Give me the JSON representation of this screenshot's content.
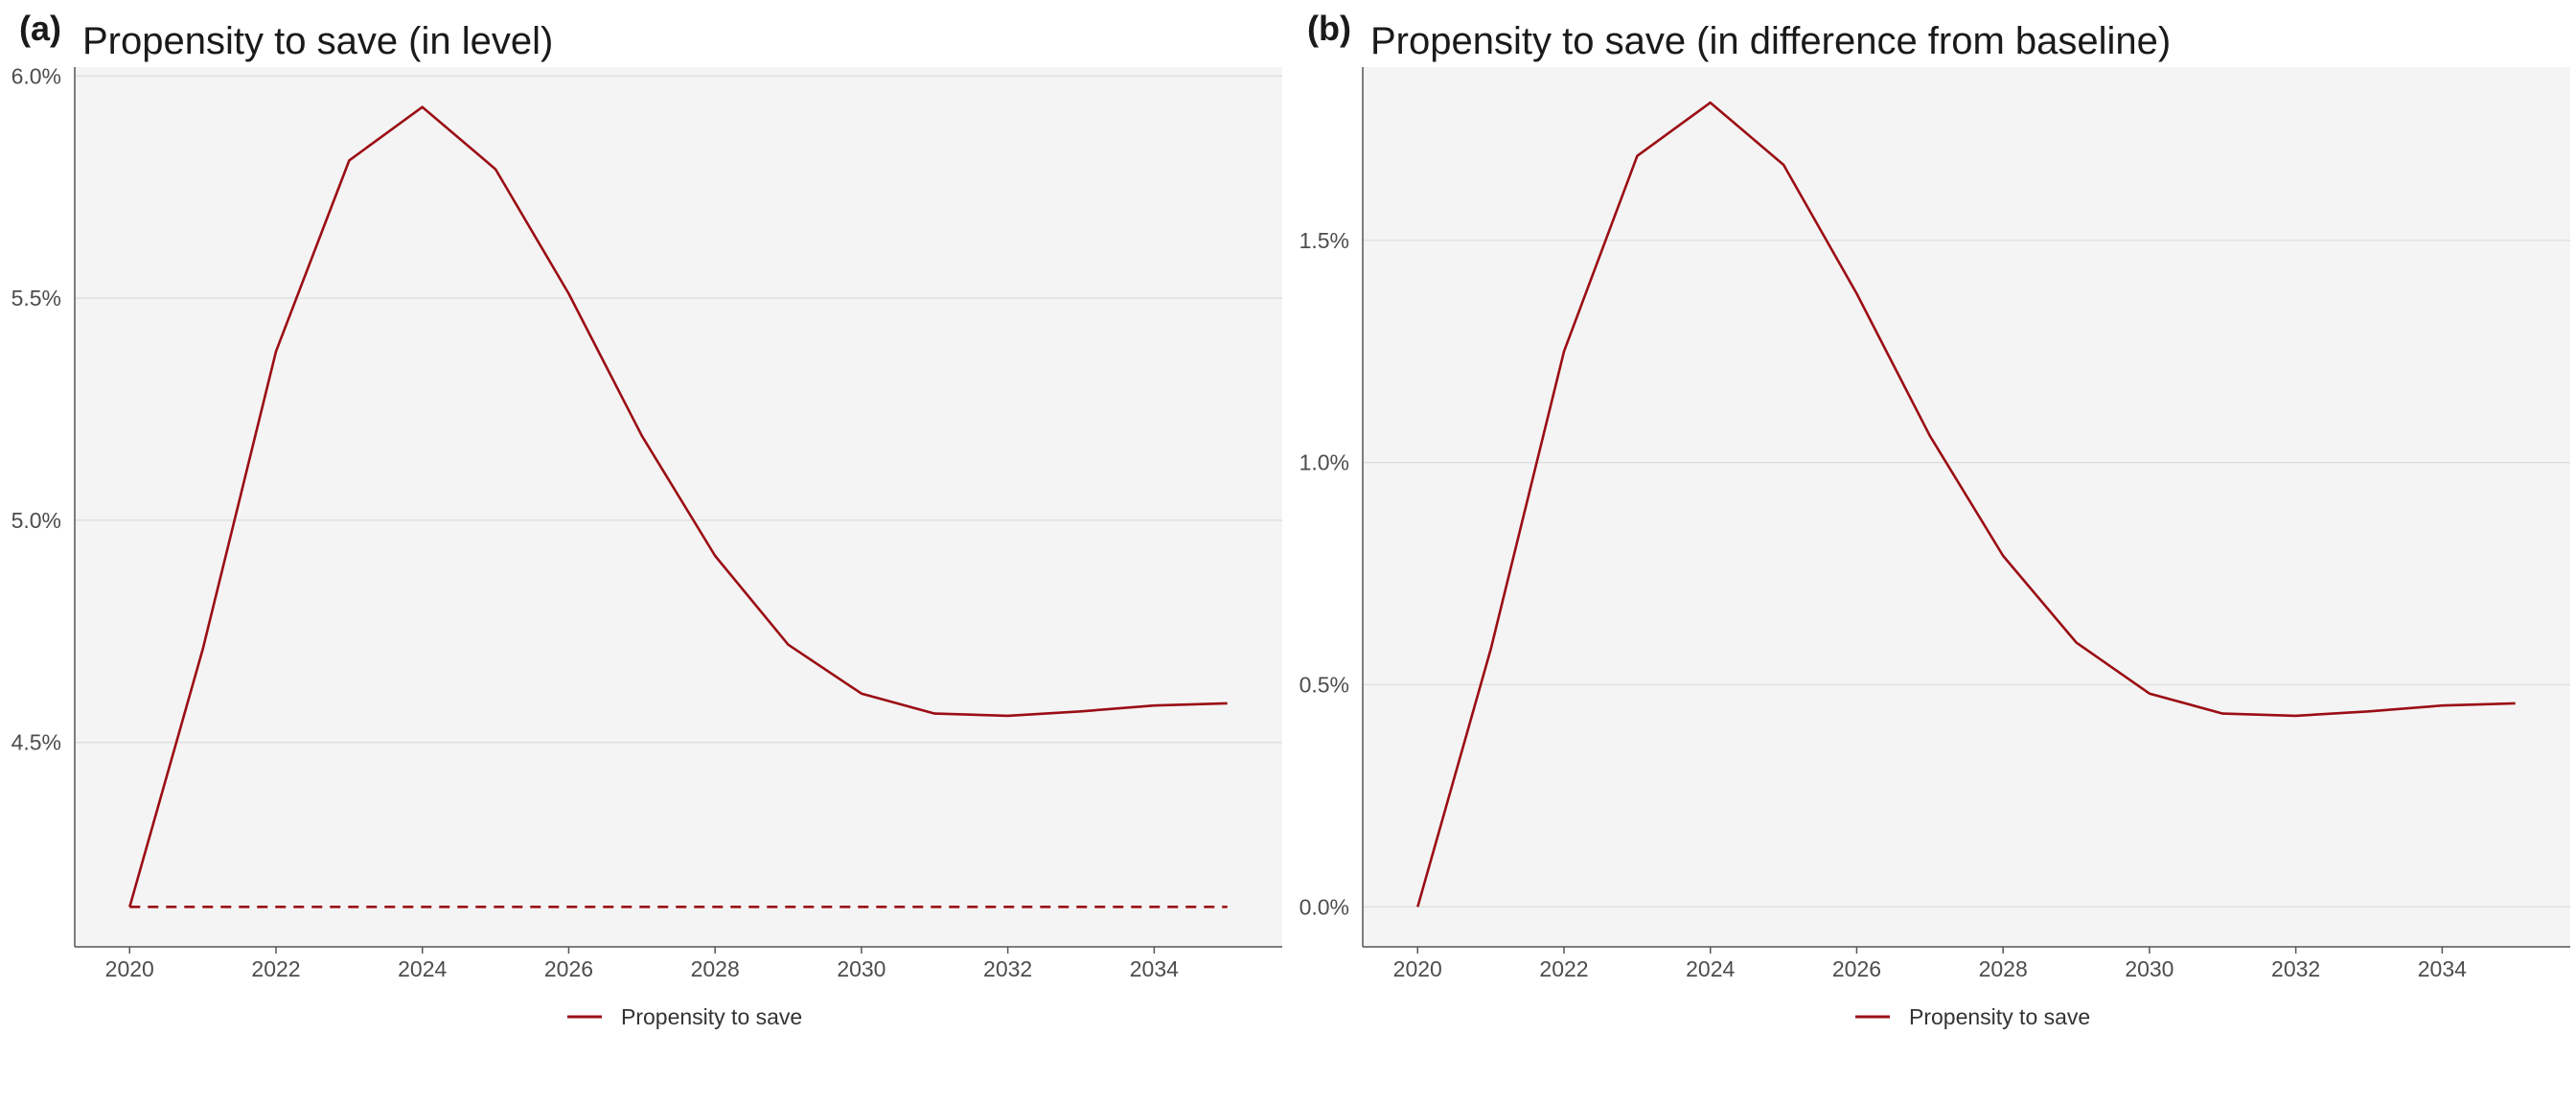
{
  "chart_data": [
    {
      "type": "line",
      "panel_label": "(a)",
      "title": "Propensity to save (in level)",
      "xlabel": "",
      "ylabel": "",
      "x": [
        2020,
        2021,
        2022,
        2023,
        2024,
        2025,
        2026,
        2027,
        2028,
        2029,
        2030,
        2031,
        2032,
        2033,
        2034,
        2035
      ],
      "series": [
        {
          "name": "Propensity to save",
          "values": [
            4.13,
            4.71,
            5.38,
            5.81,
            5.93,
            5.79,
            5.51,
            5.19,
            4.92,
            4.72,
            4.61,
            4.565,
            4.56,
            4.57,
            4.583,
            4.588
          ]
        }
      ],
      "reference_line": {
        "style": "dashed",
        "value": 4.13
      },
      "xticks": [
        2020,
        2022,
        2024,
        2026,
        2028,
        2030,
        2032,
        2034
      ],
      "yticks": [
        4.5,
        5.0,
        5.5,
        6.0
      ],
      "ytick_labels": [
        "4.5%",
        "5.0%",
        "5.5%",
        "6.0%"
      ],
      "xlim": [
        2019.25,
        2035.75
      ],
      "ylim": [
        4.04,
        6.02
      ],
      "grid": "horizontal",
      "legend": {
        "placement": "bottom",
        "entries": [
          "Propensity to save"
        ]
      },
      "colors": {
        "line": "#9b0d14",
        "panel_bg": "#f4f4f4",
        "grid": "#dcdcdc"
      }
    },
    {
      "type": "line",
      "panel_label": "(b)",
      "title": "Propensity to save (in difference from baseline)",
      "xlabel": "",
      "ylabel": "",
      "x": [
        2020,
        2021,
        2022,
        2023,
        2024,
        2025,
        2026,
        2027,
        2028,
        2029,
        2030,
        2031,
        2032,
        2033,
        2034,
        2035
      ],
      "series": [
        {
          "name": "Propensity to save",
          "values": [
            0.0,
            0.58,
            1.25,
            1.69,
            1.81,
            1.67,
            1.38,
            1.06,
            0.79,
            0.595,
            0.48,
            0.435,
            0.43,
            0.44,
            0.453,
            0.458
          ]
        }
      ],
      "xticks": [
        2020,
        2022,
        2024,
        2026,
        2028,
        2030,
        2032,
        2034
      ],
      "yticks": [
        0.0,
        0.5,
        1.0,
        1.5
      ],
      "ytick_labels": [
        "0.0%",
        "0.5%",
        "1.0%",
        "1.5%"
      ],
      "xlim": [
        2019.25,
        2035.75
      ],
      "ylim": [
        -0.09,
        1.89
      ],
      "grid": "horizontal",
      "legend": {
        "placement": "bottom",
        "entries": [
          "Propensity to save"
        ]
      },
      "colors": {
        "line": "#9b0d14",
        "panel_bg": "#f4f4f4",
        "grid": "#dcdcdc"
      }
    }
  ]
}
